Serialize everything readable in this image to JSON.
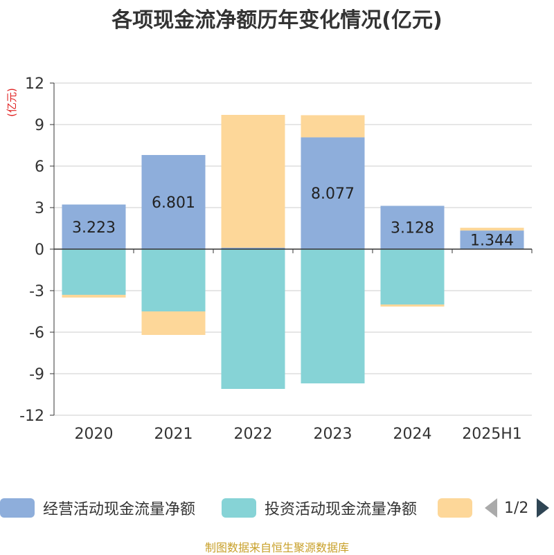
{
  "chart_data": {
    "type": "bar",
    "title": "各项现金流净额历年变化情况(亿元)",
    "ylabel": "(亿元)",
    "categories": [
      "2020",
      "2021",
      "2022",
      "2023",
      "2024",
      "2025H1"
    ],
    "yticks": [
      "12",
      "9",
      "6",
      "3",
      "0",
      "-3",
      "-6",
      "-9",
      "-12"
    ],
    "ylim": [
      -12,
      12
    ],
    "stacked": true,
    "series": [
      {
        "name": "经营活动现金流量净额",
        "color": "#8eaedb",
        "values": [
          3.223,
          6.801,
          0.1,
          8.077,
          3.128,
          1.344
        ],
        "labels": [
          "3.223",
          "6.801",
          "",
          "8.077",
          "3.128",
          "1.344"
        ]
      },
      {
        "name": "投资活动现金流量净额",
        "color": "#86d3d6",
        "values": [
          -3.3,
          -4.5,
          -10.1,
          -9.7,
          -4.0,
          0
        ],
        "labels": [
          "",
          "",
          "",
          "",
          "",
          ""
        ]
      },
      {
        "name": "",
        "color": "#fdd799",
        "values": [
          -0.2,
          -1.7,
          9.6,
          1.6,
          -0.15,
          0.2
        ],
        "labels": [
          "",
          "",
          "",
          "",
          "",
          ""
        ]
      }
    ],
    "legend": {
      "position": "bottom",
      "page": "1/2"
    }
  },
  "footer": "制图数据来自恒生聚源数据库"
}
